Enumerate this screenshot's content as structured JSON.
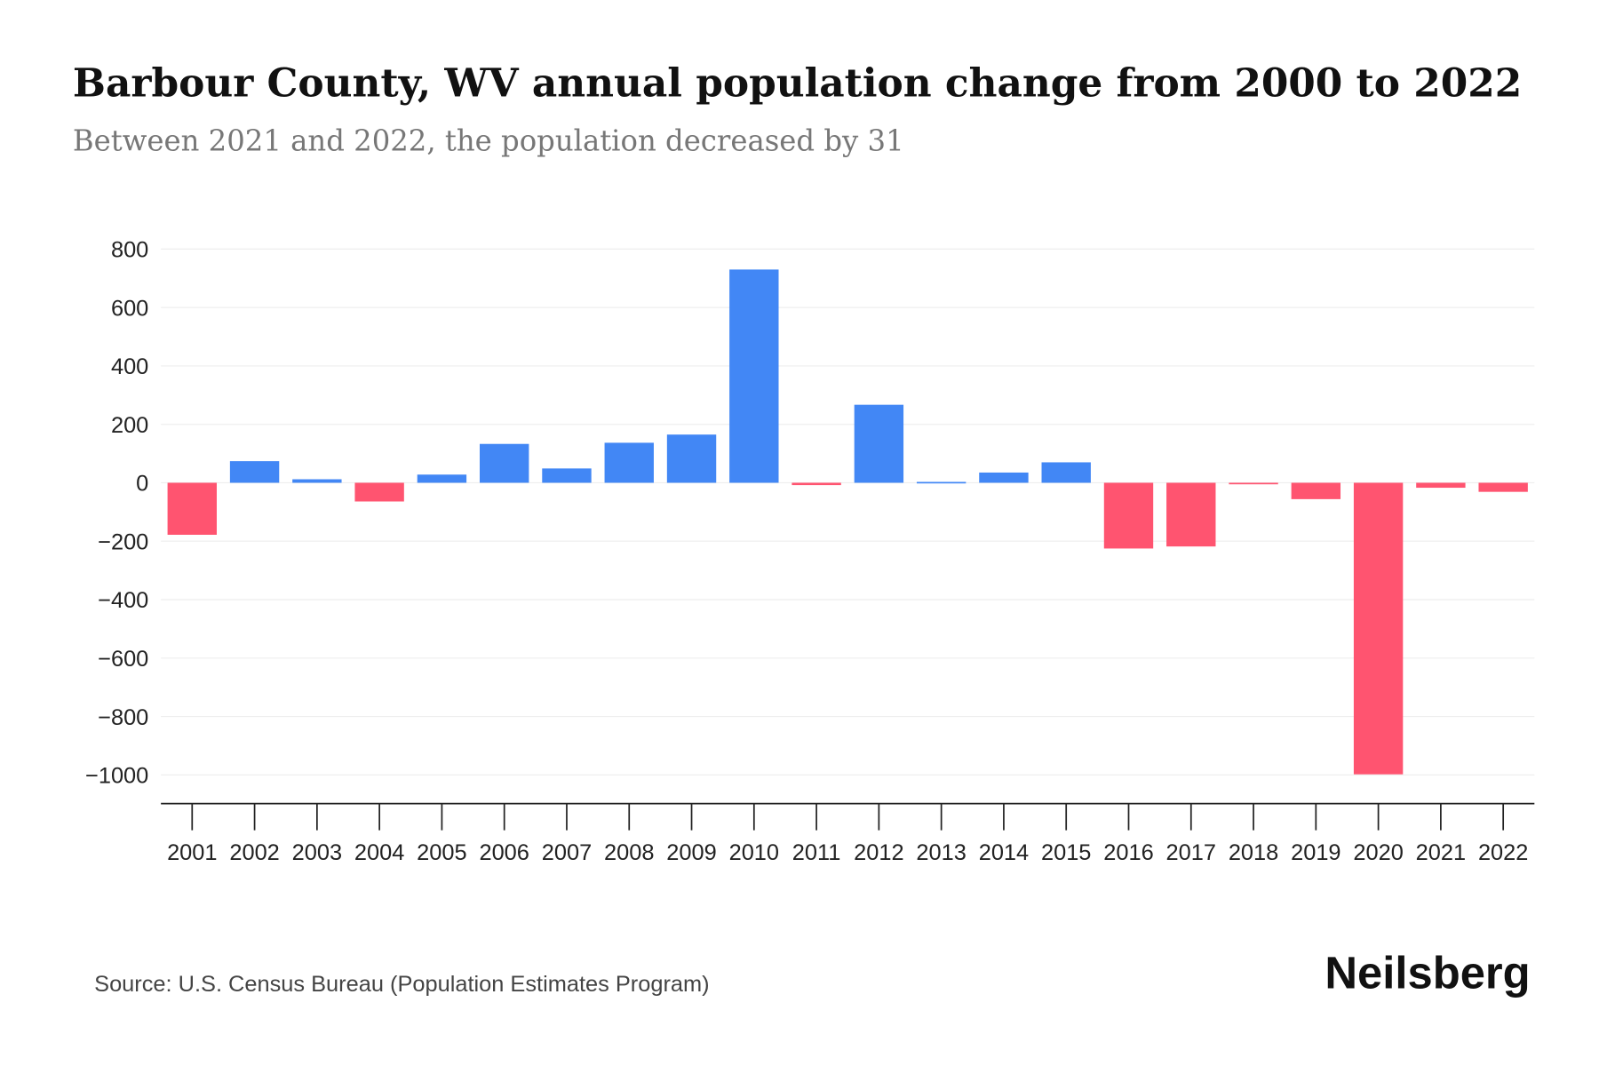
{
  "chart_data": {
    "type": "bar",
    "title": "Barbour County, WV annual population change from 2000 to 2022",
    "subtitle": "Between 2021 and 2022, the population decreased by 31",
    "xlabel": "",
    "ylabel": "",
    "ylim": [
      -1100,
      800
    ],
    "yticks": [
      800,
      600,
      400,
      200,
      0,
      -200,
      -400,
      -600,
      -800,
      -1000
    ],
    "ytick_labels": [
      "800",
      "600",
      "400",
      "200",
      "0",
      "−200",
      "−400",
      "−600",
      "−800",
      "−1000"
    ],
    "grid": true,
    "categories": [
      "2001",
      "2002",
      "2003",
      "2004",
      "2005",
      "2006",
      "2007",
      "2008",
      "2009",
      "2010",
      "2011",
      "2012",
      "2013",
      "2014",
      "2015",
      "2016",
      "2017",
      "2018",
      "2019",
      "2020",
      "2021",
      "2022"
    ],
    "values": [
      -178,
      74,
      12,
      -64,
      28,
      133,
      49,
      137,
      165,
      730,
      -8,
      267,
      3,
      35,
      70,
      -225,
      -218,
      -3,
      -56,
      -998,
      -17,
      -31
    ],
    "colors": {
      "positive": "#4287f5",
      "negative": "#ff5470"
    }
  },
  "footer": {
    "source": "Source: U.S. Census Bureau (Population Estimates Program)",
    "brand": "Neilsberg"
  }
}
